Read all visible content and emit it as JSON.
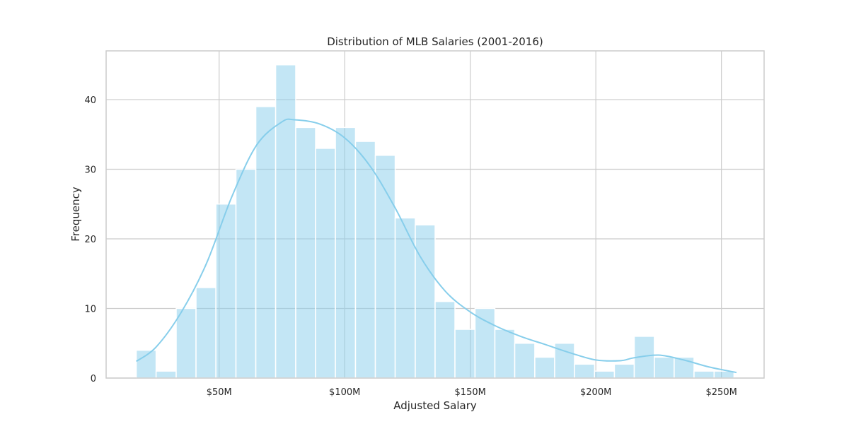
{
  "chart_data": {
    "type": "bar",
    "title": "Distribution of MLB Salaries (2001-2016)",
    "xlabel": "Adjusted Salary",
    "ylabel": "Frequency",
    "xlim": [
      5,
      267
    ],
    "ylim": [
      0,
      47
    ],
    "grid": true,
    "legend": "none",
    "colors": {
      "bar_fill": "#87ceeb",
      "bar_fill_opacity": 0.5,
      "bar_edge": "#ffffff",
      "kde_line": "#87ceeb",
      "grid": "#cccccc",
      "axes_edge": "#cccccc"
    },
    "x_ticks": [
      {
        "value": 50,
        "label": "$50M"
      },
      {
        "value": 100,
        "label": "$100M"
      },
      {
        "value": 150,
        "label": "$150M"
      },
      {
        "value": 200,
        "label": "$200M"
      },
      {
        "value": 250,
        "label": "$250M"
      }
    ],
    "y_ticks": [
      {
        "value": 0,
        "label": "0"
      },
      {
        "value": 10,
        "label": "10"
      },
      {
        "value": 20,
        "label": "20"
      },
      {
        "value": 30,
        "label": "30"
      },
      {
        "value": 40,
        "label": "40"
      }
    ],
    "bin_edges": [
      17.0,
      24.9,
      32.9,
      40.8,
      48.7,
      56.7,
      64.6,
      72.5,
      80.5,
      88.4,
      96.3,
      104.3,
      112.2,
      120.1,
      128.1,
      136.0,
      143.9,
      151.9,
      159.8,
      167.7,
      175.7,
      183.6,
      191.5,
      199.5,
      207.4,
      215.3,
      223.3,
      231.2,
      239.1,
      247.1,
      255.0
    ],
    "counts": [
      4,
      1,
      10,
      13,
      25,
      30,
      39,
      45,
      36,
      33,
      36,
      34,
      32,
      23,
      22,
      11,
      7,
      10,
      7,
      5,
      3,
      5,
      2,
      1,
      2,
      6,
      3,
      3,
      1,
      1
    ],
    "kde": {
      "x": [
        17,
        25,
        35,
        45,
        55,
        65,
        75,
        80,
        90,
        100,
        110,
        120,
        130,
        140,
        150,
        160,
        170,
        180,
        190,
        200,
        210,
        215,
        225,
        235,
        245,
        256
      ],
      "y": [
        2.4,
        4.5,
        9.5,
        16.5,
        26.0,
        33.5,
        36.8,
        37.1,
        36.5,
        34.5,
        30.5,
        24.5,
        17.5,
        12.5,
        9.5,
        7.5,
        6.0,
        4.8,
        3.6,
        2.6,
        2.5,
        2.9,
        3.3,
        2.6,
        1.6,
        0.8
      ]
    }
  }
}
